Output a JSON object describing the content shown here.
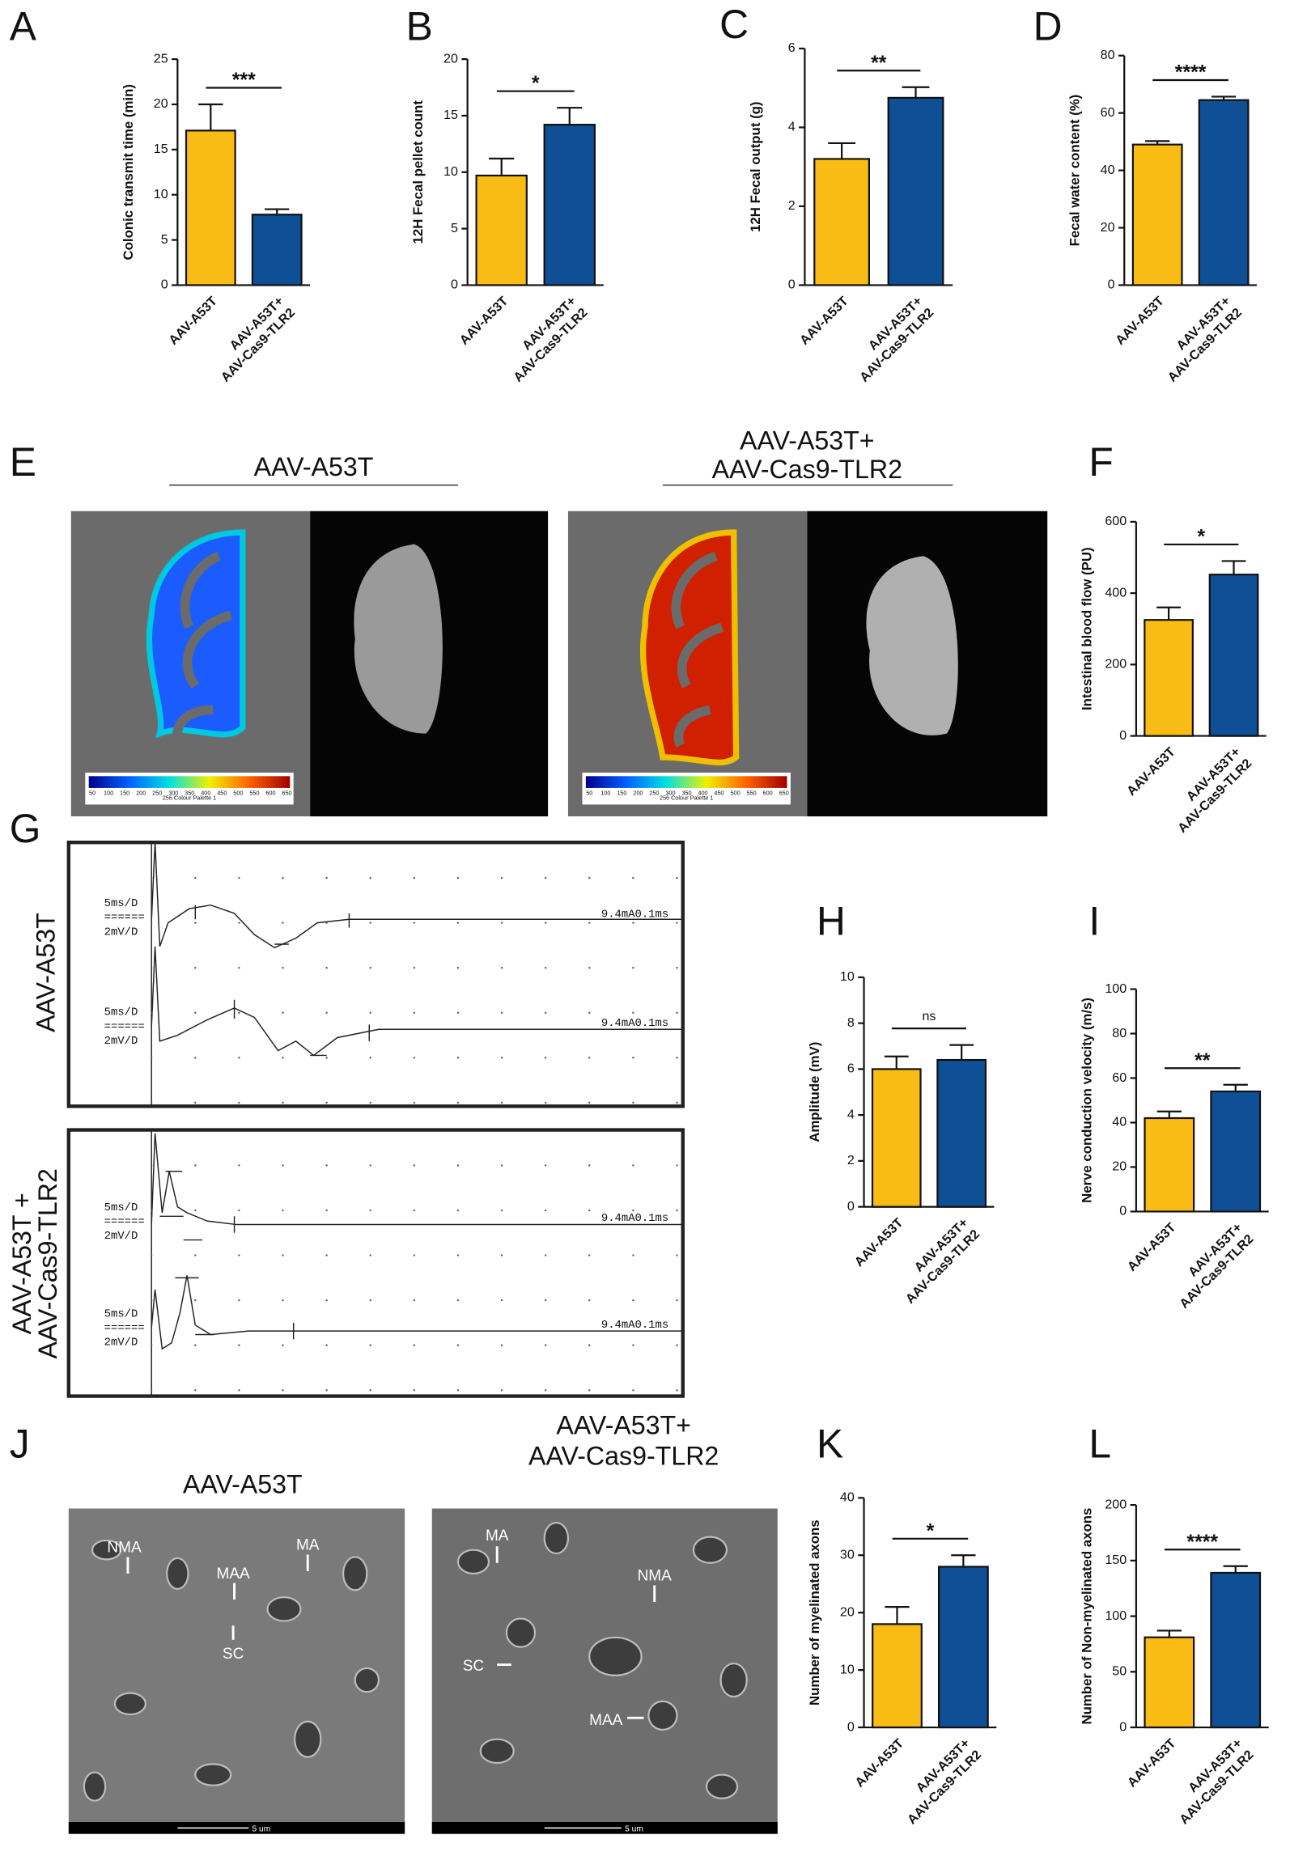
{
  "chart_data": [
    {
      "type": "bar",
      "categories": [
        "AAV-A53T",
        "AAV-A53T+\nAAV-Cas9-TLR2"
      ],
      "values": [
        17.1,
        7.8
      ],
      "errors": [
        2.9,
        0.6
      ],
      "colors": [
        "#f9bc15",
        "#0e4f95"
      ],
      "ylabel": "Colonic transmit  time (min)",
      "annotation": "***",
      "ylim": [
        0,
        25
      ],
      "yticks": [
        0,
        5,
        10,
        15,
        20,
        25
      ]
    },
    {
      "type": "bar",
      "categories": [
        "AAV-A53T",
        "AAV-A53T+\nAAV-Cas9-TLR2"
      ],
      "values": [
        9.7,
        14.2
      ],
      "errors": [
        1.5,
        1.5
      ],
      "colors": [
        "#f9bc15",
        "#0e4f95"
      ],
      "ylabel": "12H Fecal pellet count",
      "annotation": "*",
      "ylim": [
        0,
        20
      ],
      "yticks": [
        0,
        5,
        10,
        15,
        20
      ]
    },
    {
      "type": "bar",
      "categories": [
        "AAV-A53T",
        "AAV-A53T+\nAAV-Cas9-TLR2"
      ],
      "values": [
        3.2,
        4.75
      ],
      "errors": [
        0.4,
        0.27
      ],
      "colors": [
        "#f9bc15",
        "#0e4f95"
      ],
      "ylabel": "12H Fecal output (g)",
      "annotation": "**",
      "ylim": [
        0,
        6
      ],
      "yticks": [
        0,
        2,
        4,
        6
      ]
    },
    {
      "type": "bar",
      "categories": [
        "AAV-A53T",
        "AAV-A53T+\nAAV-Cas9-TLR2"
      ],
      "values": [
        49,
        64.5
      ],
      "errors": [
        1.2,
        1.2
      ],
      "colors": [
        "#f9bc15",
        "#0e4f95"
      ],
      "ylabel": "Fecal water content (%)",
      "annotation": "****",
      "ylim": [
        0,
        80
      ],
      "yticks": [
        0,
        20,
        40,
        60,
        80
      ]
    },
    {
      "type": "bar",
      "categories": [
        "AAV-A53T",
        "AAV-A53T+\nAAV-Cas9-TLR2"
      ],
      "values": [
        325,
        452
      ],
      "errors": [
        35,
        38
      ],
      "colors": [
        "#f9bc15",
        "#0e4f95"
      ],
      "ylabel": "Intestinal blood flow (PU)",
      "annotation": "*",
      "ylim": [
        0,
        600
      ],
      "yticks": [
        0,
        200,
        400,
        600
      ]
    },
    {
      "type": "bar",
      "categories": [
        "AAV-A53T",
        "AAV-A53T+\nAAV-Cas9-TLR2"
      ],
      "values": [
        6.0,
        6.4
      ],
      "errors": [
        0.55,
        0.65
      ],
      "colors": [
        "#f9bc15",
        "#0e4f95"
      ],
      "ylabel": "Amplitude (mV)",
      "annotation": "ns",
      "ylim": [
        0,
        10
      ],
      "yticks": [
        0,
        2,
        4,
        6,
        8,
        10
      ]
    },
    {
      "type": "bar",
      "categories": [
        "AAV-A53T",
        "AAV-A53T+\nAAV-Cas9-TLR2"
      ],
      "values": [
        42,
        54
      ],
      "errors": [
        3,
        3
      ],
      "colors": [
        "#f9bc15",
        "#0e4f95"
      ],
      "ylabel": "Nerve conduction velocity (m/s)",
      "annotation": "**",
      "ylim": [
        0,
        100
      ],
      "yticks": [
        0,
        20,
        40,
        60,
        80,
        100
      ]
    },
    {
      "type": "bar",
      "categories": [
        "AAV-A53T",
        "AAV-A53T+\nAAV-Cas9-TLR2"
      ],
      "values": [
        18,
        28
      ],
      "errors": [
        3,
        2
      ],
      "colors": [
        "#f9bc15",
        "#0e4f95"
      ],
      "ylabel": "Number of myelinated axons",
      "annotation": "*",
      "ylim": [
        0,
        40
      ],
      "yticks": [
        0,
        10,
        20,
        30,
        40
      ]
    },
    {
      "type": "bar",
      "categories": [
        "AAV-A53T",
        "AAV-A53T+\nAAV-Cas9-TLR2"
      ],
      "values": [
        81,
        139
      ],
      "errors": [
        6,
        6
      ],
      "colors": [
        "#f9bc15",
        "#0e4f95"
      ],
      "ylabel": "Number of Non-myelinated axons",
      "annotation": "****",
      "ylim": [
        0,
        200
      ],
      "yticks": [
        0,
        50,
        100,
        150,
        200
      ]
    }
  ],
  "figure": {
    "panel_labels": [
      "A",
      "B",
      "C",
      "D",
      "E",
      "F",
      "G",
      "H",
      "I",
      "J",
      "K",
      "L"
    ],
    "E": {
      "left": "AAV-A53T",
      "right": [
        "AAV-A53T+",
        "AAV-Cas9-TLR2"
      ],
      "colorbar_ticks": [
        50,
        100,
        150,
        200,
        250,
        300,
        350,
        400,
        450,
        500,
        550,
        600,
        650
      ],
      "colorbar_title": "256 Colour Palette 1"
    },
    "G": {
      "top_label": "AAV-A53T",
      "bottom_label": [
        "AAV-A53T +",
        "AAV-Cas9-TLR2"
      ],
      "trace_settings": [
        "5ms/D",
        "======",
        "2mV/D"
      ],
      "stimulus": "9.4mA0.1ms"
    },
    "J": {
      "left": "AAV-A53T",
      "right": [
        "AAV-A53T+",
        "AAV-Cas9-TLR2"
      ],
      "left_markers": [
        "NMA",
        "MAA",
        "MA",
        "SC"
      ],
      "right_markers": [
        "MA",
        "NMA",
        "SC",
        "MAA"
      ],
      "scale_bar": "5 um"
    }
  }
}
